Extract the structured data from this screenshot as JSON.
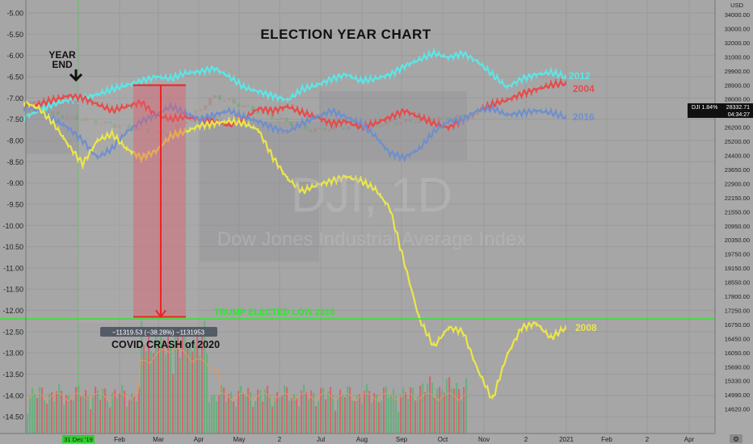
{
  "chart_data": {
    "type": "line",
    "title": "ELECTION YEAR CHART",
    "watermark_symbol": "DJI, 1D",
    "watermark_name": "Dow Jones Industrial Average Index",
    "left_axis_ticks": [
      "-5.00",
      "-5.50",
      "-6.00",
      "-6.50",
      "-7.00",
      "-7.50",
      "-8.00",
      "-8.50",
      "-9.00",
      "-9.50",
      "-10.00",
      "-10.50",
      "-11.00",
      "-11.50",
      "-12.00",
      "-12.50",
      "-13.00",
      "-13.50",
      "-14.00",
      "-14.50"
    ],
    "left_ylim": [
      -5.0,
      -14.5
    ],
    "right_axis_unit": "USD",
    "right_axis_ticks": [
      "34000.00",
      "33000.00",
      "32000.00",
      "31000.00",
      "29900.00",
      "28900.00",
      "28000.00",
      "27100.00",
      "26200.00",
      "25200.00",
      "24400.00",
      "23650.00",
      "22900.00",
      "22150.00",
      "21550.00",
      "20950.00",
      "20350.00",
      "19750.00",
      "19150.00",
      "18550.00",
      "17800.00",
      "17250.00",
      "16750.00",
      "16450.00",
      "16050.00",
      "15690.00",
      "15330.00",
      "14990.00",
      "14620.00"
    ],
    "x_ticks": [
      "31 Dec '19",
      "Feb",
      "Mar",
      "Apr",
      "May",
      "2",
      "Jul",
      "Aug",
      "Sep",
      "Oct",
      "Nov",
      "2",
      "2021",
      "Feb",
      "2",
      "Apr"
    ],
    "series": [
      {
        "name": "2012",
        "color": "#5ce6e6",
        "values": [
          -7.45,
          -7.3,
          -7.15,
          -7.05,
          -7.0,
          -6.92,
          -6.8,
          -6.7,
          -6.6,
          -6.5,
          -6.55,
          -6.42,
          -6.38,
          -6.3,
          -6.5,
          -6.75,
          -6.85,
          -6.95,
          -7.05,
          -6.8,
          -6.7,
          -6.55,
          -6.45,
          -6.6,
          -6.55,
          -6.45,
          -6.25,
          -6.1,
          -5.95,
          -6.05,
          -5.95,
          -6.15,
          -6.45,
          -6.75,
          -6.55,
          -6.45,
          -6.4,
          -6.5
        ]
      },
      {
        "name": "2004",
        "color": "#e84a4a",
        "values": [
          -7.2,
          -7.15,
          -7.05,
          -6.95,
          -7.0,
          -7.15,
          -7.3,
          -7.2,
          -7.1,
          -7.4,
          -7.5,
          -7.45,
          -7.5,
          -7.55,
          -7.65,
          -7.5,
          -7.25,
          -7.3,
          -7.2,
          -7.35,
          -7.45,
          -7.6,
          -7.55,
          -7.7,
          -7.6,
          -7.45,
          -7.3,
          -7.45,
          -7.6,
          -7.7,
          -7.5,
          -7.3,
          -7.15,
          -7.05,
          -6.9,
          -6.8,
          -6.7,
          -6.65
        ]
      },
      {
        "name": "2016",
        "color": "#6f8fcc",
        "values": [
          -7.2,
          -7.3,
          -7.5,
          -7.7,
          -8.0,
          -8.4,
          -8.2,
          -7.8,
          -7.55,
          -7.4,
          -7.2,
          -7.35,
          -7.5,
          -7.4,
          -7.3,
          -7.45,
          -7.55,
          -7.7,
          -7.8,
          -7.6,
          -7.45,
          -7.3,
          -7.45,
          -7.6,
          -7.9,
          -8.3,
          -8.4,
          -8.2,
          -7.8,
          -7.55,
          -7.5,
          -7.3,
          -7.25,
          -7.4,
          -7.35,
          -7.3,
          -7.35,
          -7.45
        ]
      },
      {
        "name": "2008",
        "color": "#ebe64a",
        "values": [
          -7.1,
          -7.25,
          -7.6,
          -8.1,
          -8.55,
          -8.0,
          -7.85,
          -8.2,
          -8.4,
          -8.25,
          -7.9,
          -7.8,
          -7.65,
          -7.6,
          -7.55,
          -7.6,
          -7.75,
          -8.4,
          -8.9,
          -9.2,
          -9.05,
          -8.95,
          -8.85,
          -8.95,
          -9.15,
          -9.6,
          -10.9,
          -12.2,
          -12.85,
          -12.4,
          -12.5,
          -13.4,
          -14.1,
          -13.05,
          -12.4,
          -12.3,
          -12.65,
          -12.4
        ]
      }
    ],
    "horizontal_line": {
      "label": "TRUMP ELECTED LOW 2016",
      "value": -12.2,
      "price_label": "18654.80",
      "color": "#22ee22"
    },
    "measure": {
      "label": "−11319.53 (−38.28%) −1131953",
      "caption": "COVID CRASH of 2020",
      "from_value": -6.7,
      "to_value": -12.15
    },
    "annotation_year_end": [
      "YEAR",
      "END"
    ],
    "dji_tag": {
      "label": "DJI 1.84%",
      "price": "28332.71",
      "time": "04:34:27"
    },
    "grid": true,
    "legend": "right"
  }
}
